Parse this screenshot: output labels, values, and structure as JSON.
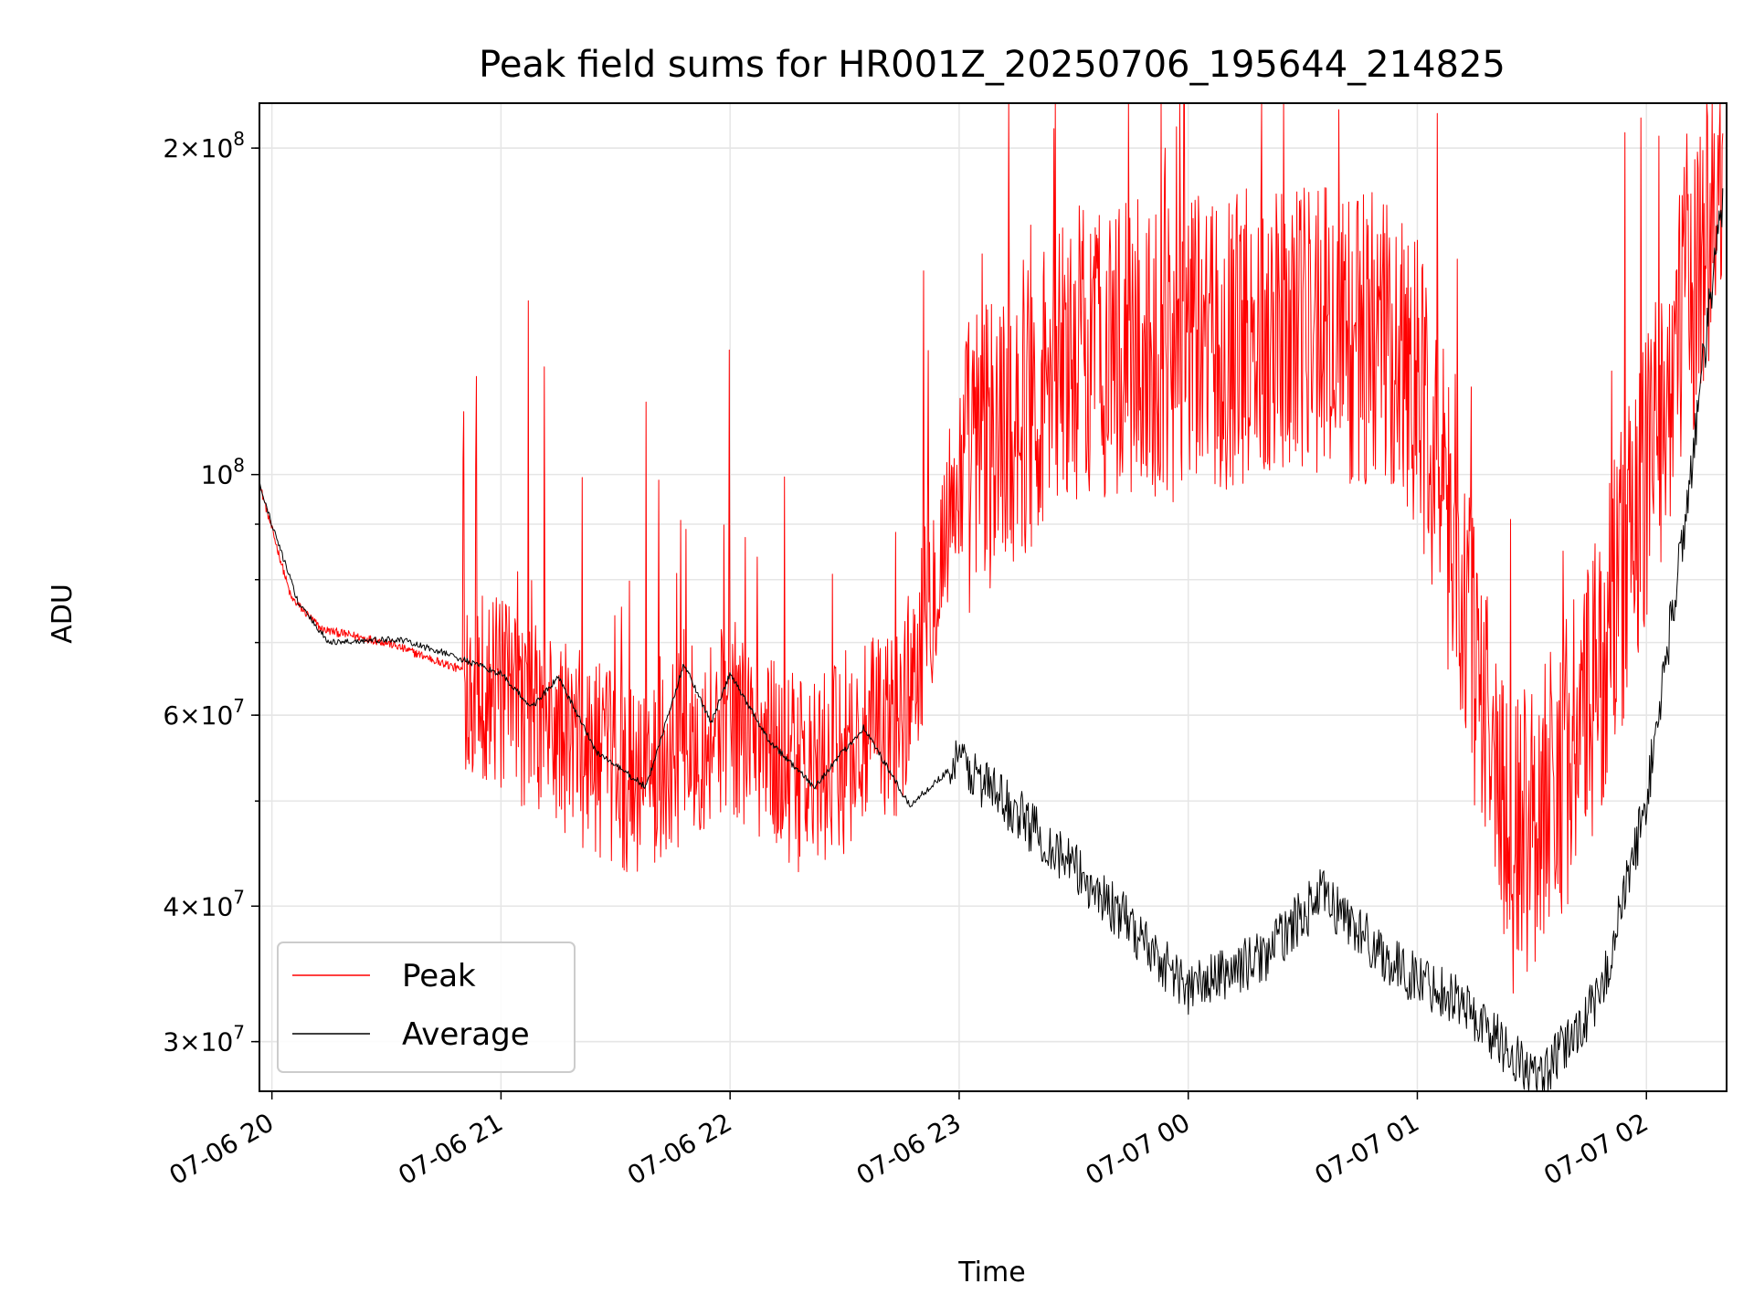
{
  "chart_data": {
    "type": "line",
    "title": "Peak field sums for HR001Z_20250706_195644_214825",
    "xlabel": "Time",
    "ylabel": "ADU",
    "xlim": [
      "2025-07-06T19:56:44",
      "2025-07-07T02:21:00"
    ],
    "ylim": [
      27000000,
      220000000
    ],
    "yscale": "log",
    "grid": true,
    "legend_position": "lower-left",
    "x_ticks": [
      {
        "t": "2025-07-06T20:00:00",
        "label": "07-06 20"
      },
      {
        "t": "2025-07-06T21:00:00",
        "label": "07-06 21"
      },
      {
        "t": "2025-07-06T22:00:00",
        "label": "07-06 22"
      },
      {
        "t": "2025-07-06T23:00:00",
        "label": "07-06 23"
      },
      {
        "t": "2025-07-07T00:00:00",
        "label": "07-07 00"
      },
      {
        "t": "2025-07-07T01:00:00",
        "label": "07-07 01"
      },
      {
        "t": "2025-07-07T02:00:00",
        "label": "07-07 02"
      }
    ],
    "y_ticks": [
      {
        "value": 30000000,
        "mantissa": "3",
        "exponent": "7"
      },
      {
        "value": 40000000,
        "mantissa": "4",
        "exponent": "7"
      },
      {
        "value": 60000000,
        "mantissa": "6",
        "exponent": "7"
      },
      {
        "value": 100000000,
        "mantissa": "",
        "exponent": "8"
      },
      {
        "value": 200000000,
        "mantissa": "2",
        "exponent": "8"
      }
    ],
    "series": [
      {
        "name": "Peak",
        "color": "#ff0000",
        "line_width": 1,
        "description_points": [
          {
            "t": "2025-07-06T19:56:44",
            "y": 98000000
          },
          {
            "t": "2025-07-06T20:05:00",
            "y": 77000000
          },
          {
            "t": "2025-07-06T20:13:00",
            "y": 72000000
          },
          {
            "t": "2025-07-06T20:30:00",
            "y": 70000000
          },
          {
            "t": "2025-07-06T20:50:00",
            "y": 66000000
          },
          {
            "t": "2025-07-06T21:07:00",
            "y": 60000000
          },
          {
            "t": "2025-07-06T21:35:00",
            "y": 52000000
          },
          {
            "t": "2025-07-06T22:00:00",
            "y": 60000000
          },
          {
            "t": "2025-07-06T22:20:00",
            "y": 52000000
          },
          {
            "t": "2025-07-06T22:45:00",
            "y": 60000000
          },
          {
            "t": "2025-07-06T23:00:00",
            "y": 100000000
          },
          {
            "t": "2025-07-06T23:30:00",
            "y": 130000000
          },
          {
            "t": "2025-07-07T00:00:00",
            "y": 130000000
          },
          {
            "t": "2025-07-07T00:30:00",
            "y": 140000000
          },
          {
            "t": "2025-07-07T01:00:00",
            "y": 125000000
          },
          {
            "t": "2025-07-07T01:25:00",
            "y": 45000000
          },
          {
            "t": "2025-07-07T01:45:00",
            "y": 60000000
          },
          {
            "t": "2025-07-07T02:00:00",
            "y": 100000000
          },
          {
            "t": "2025-07-07T02:20:00",
            "y": 195000000
          }
        ]
      },
      {
        "name": "Average",
        "color": "#000000",
        "line_width": 1,
        "description_points": [
          {
            "t": "2025-07-06T19:56:44",
            "y": 98000000
          },
          {
            "t": "2025-07-06T20:00:00",
            "y": 90000000
          },
          {
            "t": "2025-07-06T20:07:00",
            "y": 76000000
          },
          {
            "t": "2025-07-06T20:15:00",
            "y": 70000000
          },
          {
            "t": "2025-07-06T20:33:00",
            "y": 70500000
          },
          {
            "t": "2025-07-06T20:45:00",
            "y": 68500000
          },
          {
            "t": "2025-07-06T21:00:00",
            "y": 65500000
          },
          {
            "t": "2025-07-06T21:08:00",
            "y": 61000000
          },
          {
            "t": "2025-07-06T21:15:00",
            "y": 65000000
          },
          {
            "t": "2025-07-06T21:25:00",
            "y": 55500000
          },
          {
            "t": "2025-07-06T21:38:00",
            "y": 51500000
          },
          {
            "t": "2025-07-06T21:48:00",
            "y": 67000000
          },
          {
            "t": "2025-07-06T21:55:00",
            "y": 59000000
          },
          {
            "t": "2025-07-06T22:00:00",
            "y": 65500000
          },
          {
            "t": "2025-07-06T22:10:00",
            "y": 57000000
          },
          {
            "t": "2025-07-06T22:22:00",
            "y": 51500000
          },
          {
            "t": "2025-07-06T22:35:00",
            "y": 58500000
          },
          {
            "t": "2025-07-06T22:47:00",
            "y": 49500000
          },
          {
            "t": "2025-07-06T23:00:00",
            "y": 54500000
          },
          {
            "t": "2025-07-06T23:20:00",
            "y": 47000000
          },
          {
            "t": "2025-07-06T23:40:00",
            "y": 40000000
          },
          {
            "t": "2025-07-07T00:00:00",
            "y": 33500000
          },
          {
            "t": "2025-07-07T00:20:00",
            "y": 36000000
          },
          {
            "t": "2025-07-07T00:35:00",
            "y": 41000000
          },
          {
            "t": "2025-07-07T00:55:00",
            "y": 35000000
          },
          {
            "t": "2025-07-07T01:10:00",
            "y": 33000000
          },
          {
            "t": "2025-07-07T01:32:00",
            "y": 27500000
          },
          {
            "t": "2025-07-07T01:48:00",
            "y": 33000000
          },
          {
            "t": "2025-07-07T02:00:00",
            "y": 50000000
          },
          {
            "t": "2025-07-07T02:10:00",
            "y": 90000000
          },
          {
            "t": "2025-07-07T02:20:00",
            "y": 180000000
          }
        ]
      }
    ]
  }
}
